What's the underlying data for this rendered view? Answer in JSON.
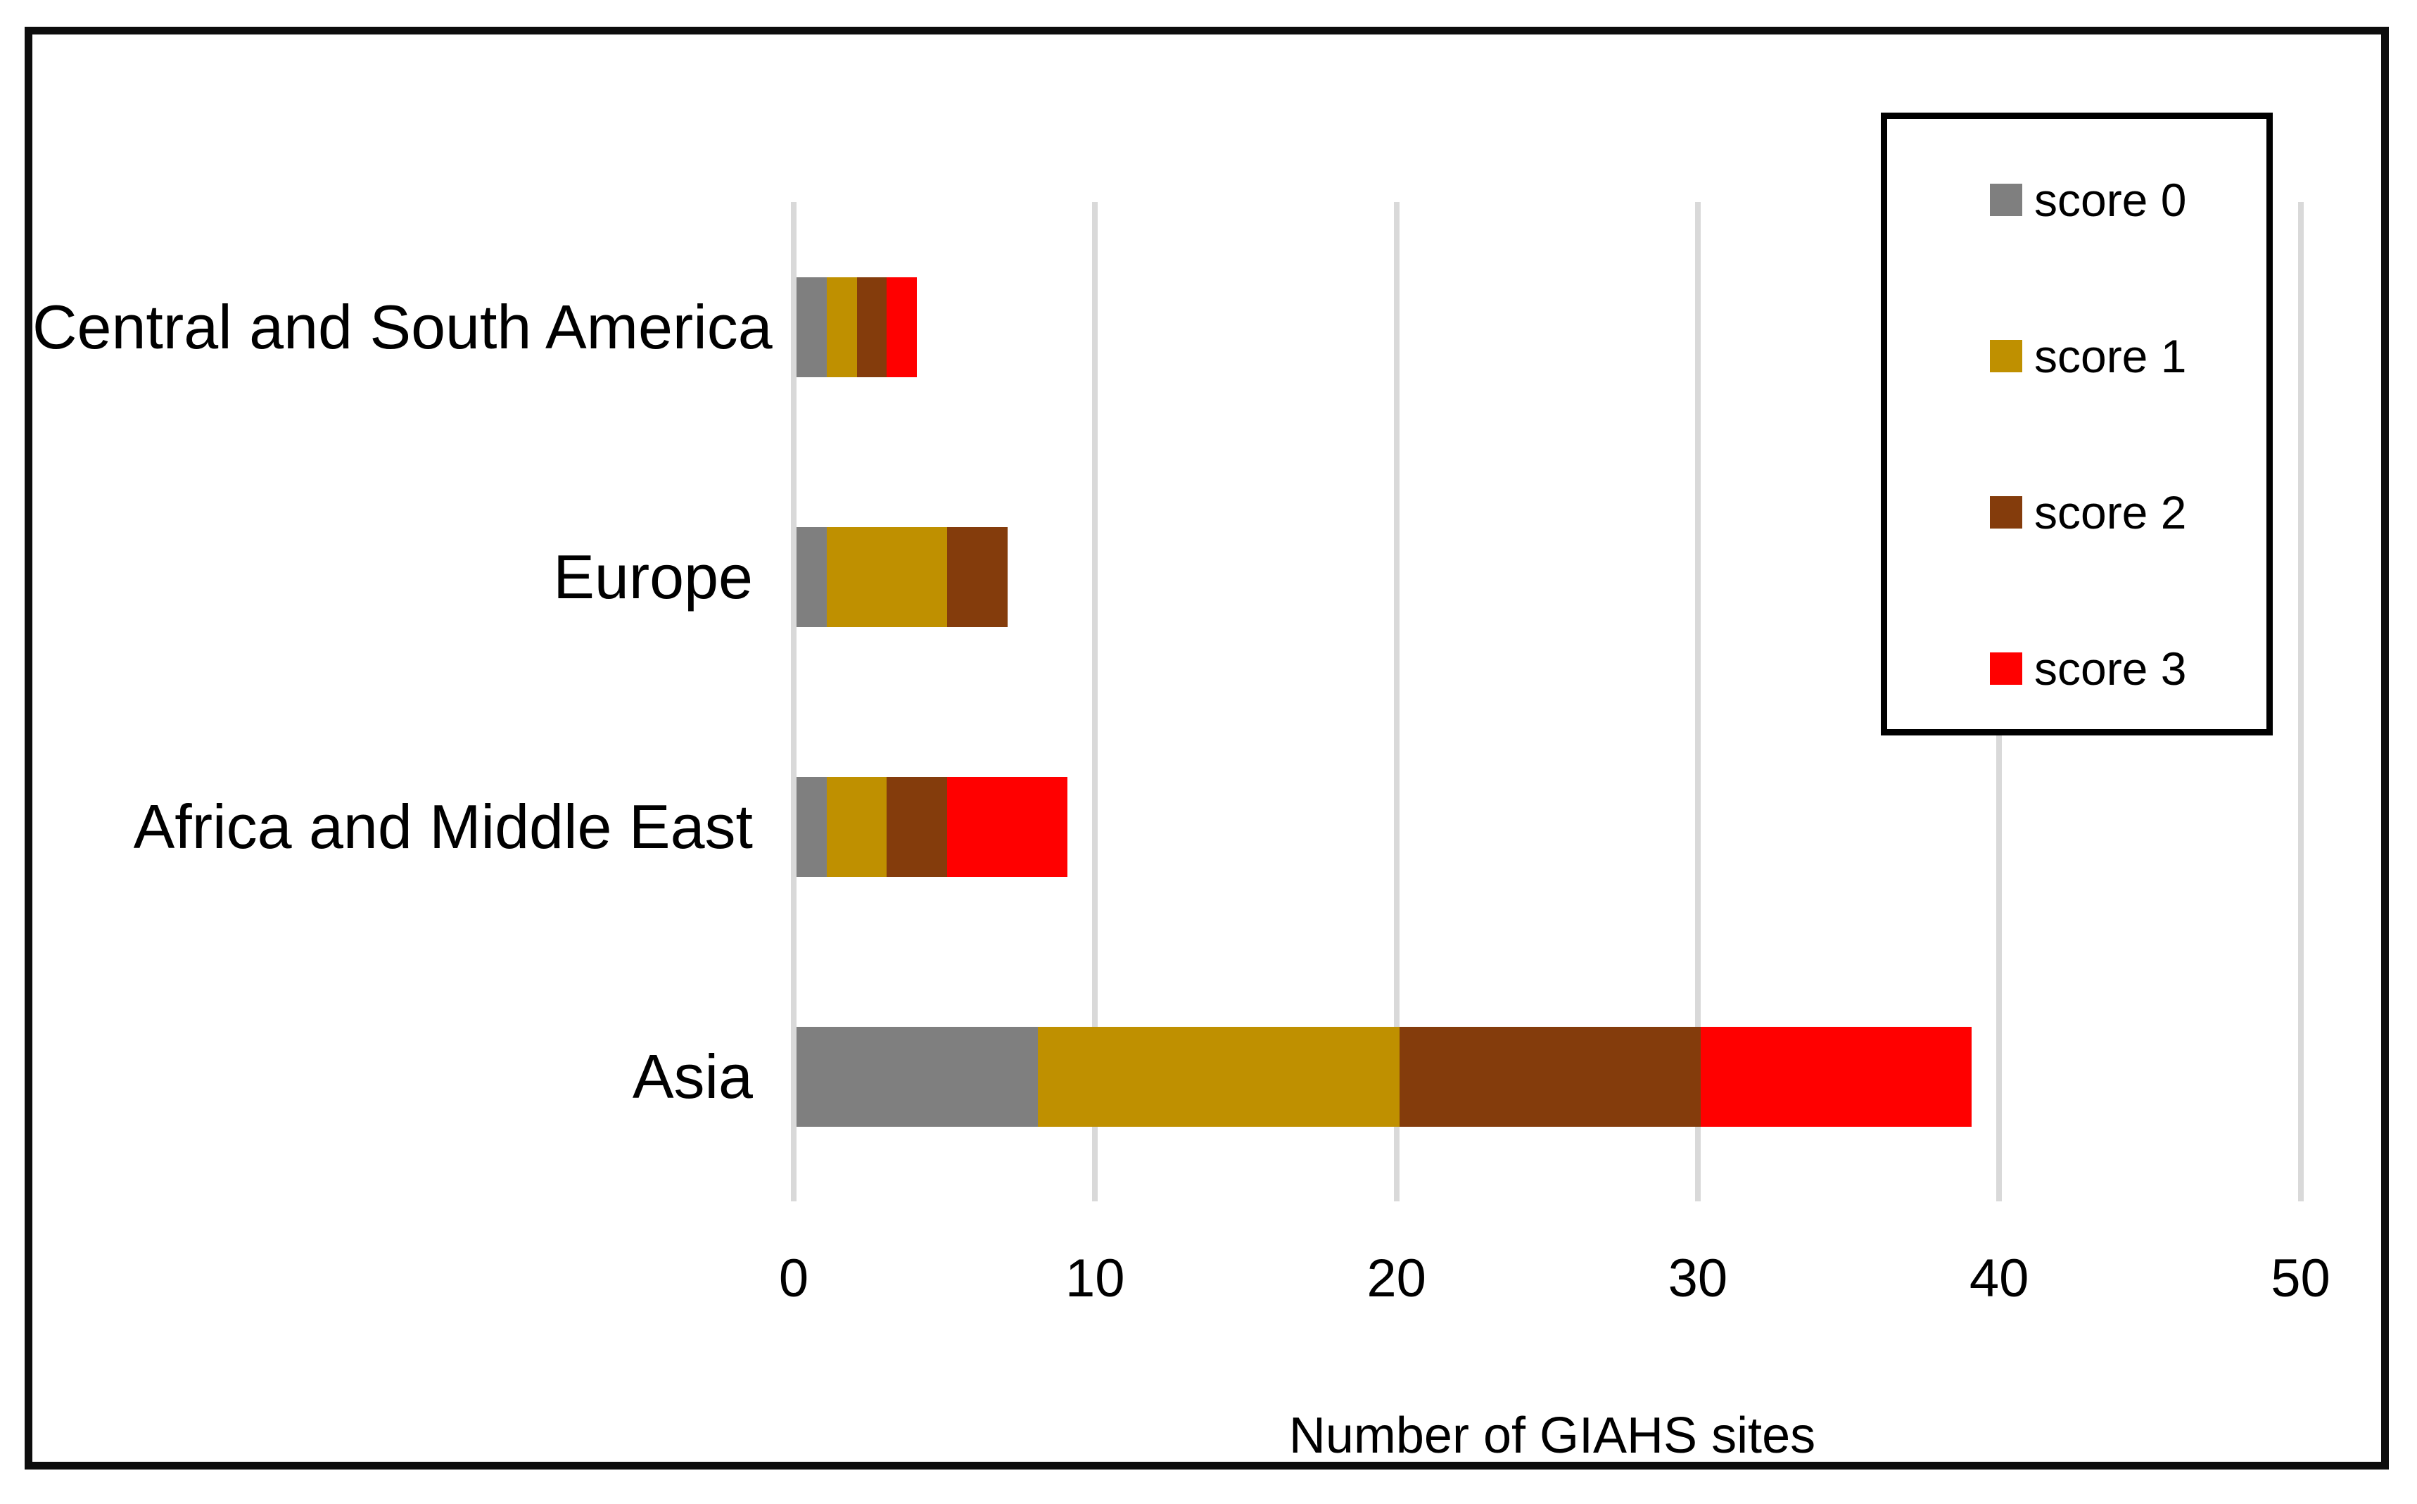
{
  "chart_data": {
    "type": "bar",
    "orientation": "horizontal",
    "stacked": true,
    "xlabel": "Number of GIAHS sites",
    "xlim": [
      0,
      50
    ],
    "xticks": [
      0,
      10,
      20,
      30,
      40,
      50
    ],
    "grid": true,
    "legend_position": "top-right",
    "categories": [
      "Central and South America",
      "Europe",
      "Africa and Middle East",
      "Asia"
    ],
    "series": [
      {
        "name": "score 0",
        "color": "#7F7F7F",
        "values": [
          1,
          1,
          1,
          8
        ]
      },
      {
        "name": "score 1",
        "color": "#BF9000",
        "values": [
          1,
          4,
          2,
          12
        ]
      },
      {
        "name": "score 2",
        "color": "#843C0C",
        "values": [
          1,
          2,
          2,
          10
        ]
      },
      {
        "name": "score 3",
        "color": "#FF0000",
        "values": [
          1,
          0,
          4,
          9
        ]
      }
    ]
  },
  "colors": {
    "background": "#FFFFFF",
    "frame_border": "#0D0D0D",
    "gridline": "#D9D9D9",
    "text": "#000000",
    "legend_border": "#000000",
    "legend_background": "#FFFFFF"
  }
}
